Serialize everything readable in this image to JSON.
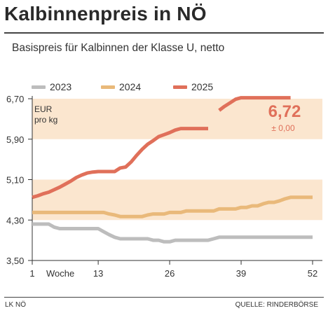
{
  "header": {
    "title": "Kalbinnenpreis in NÖ",
    "subtitle": "Basispreis für Kalbinnen der Klasse U, netto"
  },
  "footer": {
    "left": "LK NÖ",
    "right": "QUELLE: RINDERBÖRSE"
  },
  "callout": {
    "value": "6,72",
    "change": "± 0,00",
    "color": "#e0705a"
  },
  "colors": {
    "band": "#fbe6cf",
    "axis": "#333333"
  },
  "chart_data": {
    "type": "line",
    "title": "",
    "xlabel": "Woche",
    "ylabel": "EUR pro kg",
    "unit_line1": "EUR",
    "unit_line2": "pro kg",
    "xlim": [
      1,
      52
    ],
    "ylim": [
      3.5,
      6.7
    ],
    "x_ticks": [
      1,
      13,
      26,
      39,
      52
    ],
    "x_tick_labels": [
      "1",
      "13",
      "26",
      "39",
      "52"
    ],
    "y_ticks": [
      3.5,
      4.3,
      5.1,
      5.9,
      6.7
    ],
    "y_tick_labels": [
      "3,50",
      "4,30",
      "5,10",
      "5,90",
      "6,70"
    ],
    "bands": [
      [
        4.3,
        5.1
      ],
      [
        5.9,
        6.7
      ]
    ],
    "legend_position": "top",
    "series": [
      {
        "name": "2023",
        "color": "#bdbdbd",
        "x": [
          1,
          4,
          5,
          6,
          7,
          8,
          9,
          10,
          11,
          12,
          13,
          14,
          15,
          16,
          17,
          18,
          19,
          20,
          21,
          22,
          23,
          24,
          25,
          26,
          27,
          28,
          29,
          30,
          31,
          32,
          33,
          34,
          35,
          36,
          37,
          38,
          39,
          40,
          41,
          42,
          43,
          44,
          45,
          46,
          47,
          48,
          49,
          50,
          51,
          52
        ],
        "y": [
          4.22,
          4.22,
          4.16,
          4.13,
          4.13,
          4.13,
          4.13,
          4.13,
          4.13,
          4.13,
          4.13,
          4.07,
          4.01,
          3.96,
          3.93,
          3.93,
          3.93,
          3.93,
          3.93,
          3.93,
          3.9,
          3.9,
          3.87,
          3.87,
          3.9,
          3.9,
          3.9,
          3.9,
          3.9,
          3.9,
          3.9,
          3.93,
          3.96,
          3.96,
          3.96,
          3.96,
          3.96,
          3.96,
          3.96,
          3.96,
          3.96,
          3.96,
          3.96,
          3.96,
          3.96,
          3.96,
          3.96,
          3.96,
          3.96,
          3.96
        ]
      },
      {
        "name": "2024",
        "color": "#e9b97a",
        "x": [
          1,
          14,
          15,
          16,
          17,
          18,
          19,
          20,
          21,
          22,
          23,
          24,
          25,
          26,
          27,
          28,
          29,
          30,
          31,
          32,
          33,
          34,
          35,
          36,
          37,
          38,
          39,
          40,
          41,
          42,
          43,
          44,
          45,
          46,
          47,
          48,
          49,
          50,
          51,
          52
        ],
        "y": [
          4.45,
          4.45,
          4.42,
          4.4,
          4.37,
          4.37,
          4.37,
          4.37,
          4.37,
          4.4,
          4.42,
          4.42,
          4.42,
          4.45,
          4.45,
          4.45,
          4.48,
          4.48,
          4.48,
          4.48,
          4.48,
          4.48,
          4.52,
          4.52,
          4.52,
          4.52,
          4.55,
          4.55,
          4.58,
          4.58,
          4.62,
          4.65,
          4.65,
          4.68,
          4.72,
          4.75,
          4.75,
          4.75,
          4.75,
          4.75
        ]
      },
      {
        "name": "2025",
        "color": "#e0705a",
        "x": [
          1,
          2,
          3,
          4,
          5,
          6,
          7,
          8,
          9,
          10,
          11,
          12,
          13,
          14,
          15,
          16,
          17,
          18,
          19,
          20,
          21,
          22,
          23,
          24,
          25,
          26,
          27,
          28,
          29,
          30,
          31,
          32,
          33
        ],
        "y": [
          4.75,
          4.78,
          4.82,
          4.85,
          4.9,
          4.95,
          5.01,
          5.07,
          5.14,
          5.19,
          5.23,
          5.25,
          5.26,
          5.26,
          5.26,
          5.26,
          5.33,
          5.35,
          5.45,
          5.58,
          5.7,
          5.8,
          5.87,
          5.95,
          5.99,
          6.03,
          6.08,
          6.11,
          6.11,
          6.11,
          6.11,
          6.11,
          6.11
        ]
      },
      {
        "name": "",
        "color": "#e0705a",
        "x": [
          35,
          36,
          37,
          38,
          39,
          40,
          41,
          42,
          43,
          44,
          45,
          46,
          47,
          48
        ],
        "y": [
          6.47,
          6.55,
          6.62,
          6.69,
          6.72,
          6.72,
          6.72,
          6.72,
          6.72,
          6.72,
          6.72,
          6.72,
          6.72,
          6.72
        ]
      }
    ]
  }
}
